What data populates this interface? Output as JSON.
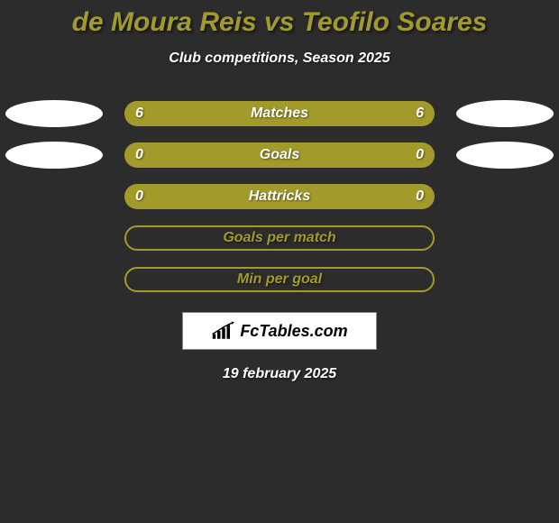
{
  "title": "de Moura Reis vs Teofilo Soares",
  "title_color": "#a29b2b",
  "subtitle": "Club competitions, Season 2025",
  "background_color": "#2c2c2c",
  "bar_color": "#a29b2b",
  "ellipse_color": "#ffffff",
  "text_color": "#ffffff",
  "rows": [
    {
      "label": "Matches",
      "left": "6",
      "right": "6",
      "style": "solid",
      "ellipses": true
    },
    {
      "label": "Goals",
      "left": "0",
      "right": "0",
      "style": "solid",
      "ellipses": true
    },
    {
      "label": "Hattricks",
      "left": "0",
      "right": "0",
      "style": "solid",
      "ellipses": false
    },
    {
      "label": "Goals per match",
      "left": "",
      "right": "",
      "style": "outline",
      "ellipses": false
    },
    {
      "label": "Min per goal",
      "left": "",
      "right": "",
      "style": "outline",
      "ellipses": false
    }
  ],
  "watermark": "FcTables.com",
  "date": "19 february 2025"
}
